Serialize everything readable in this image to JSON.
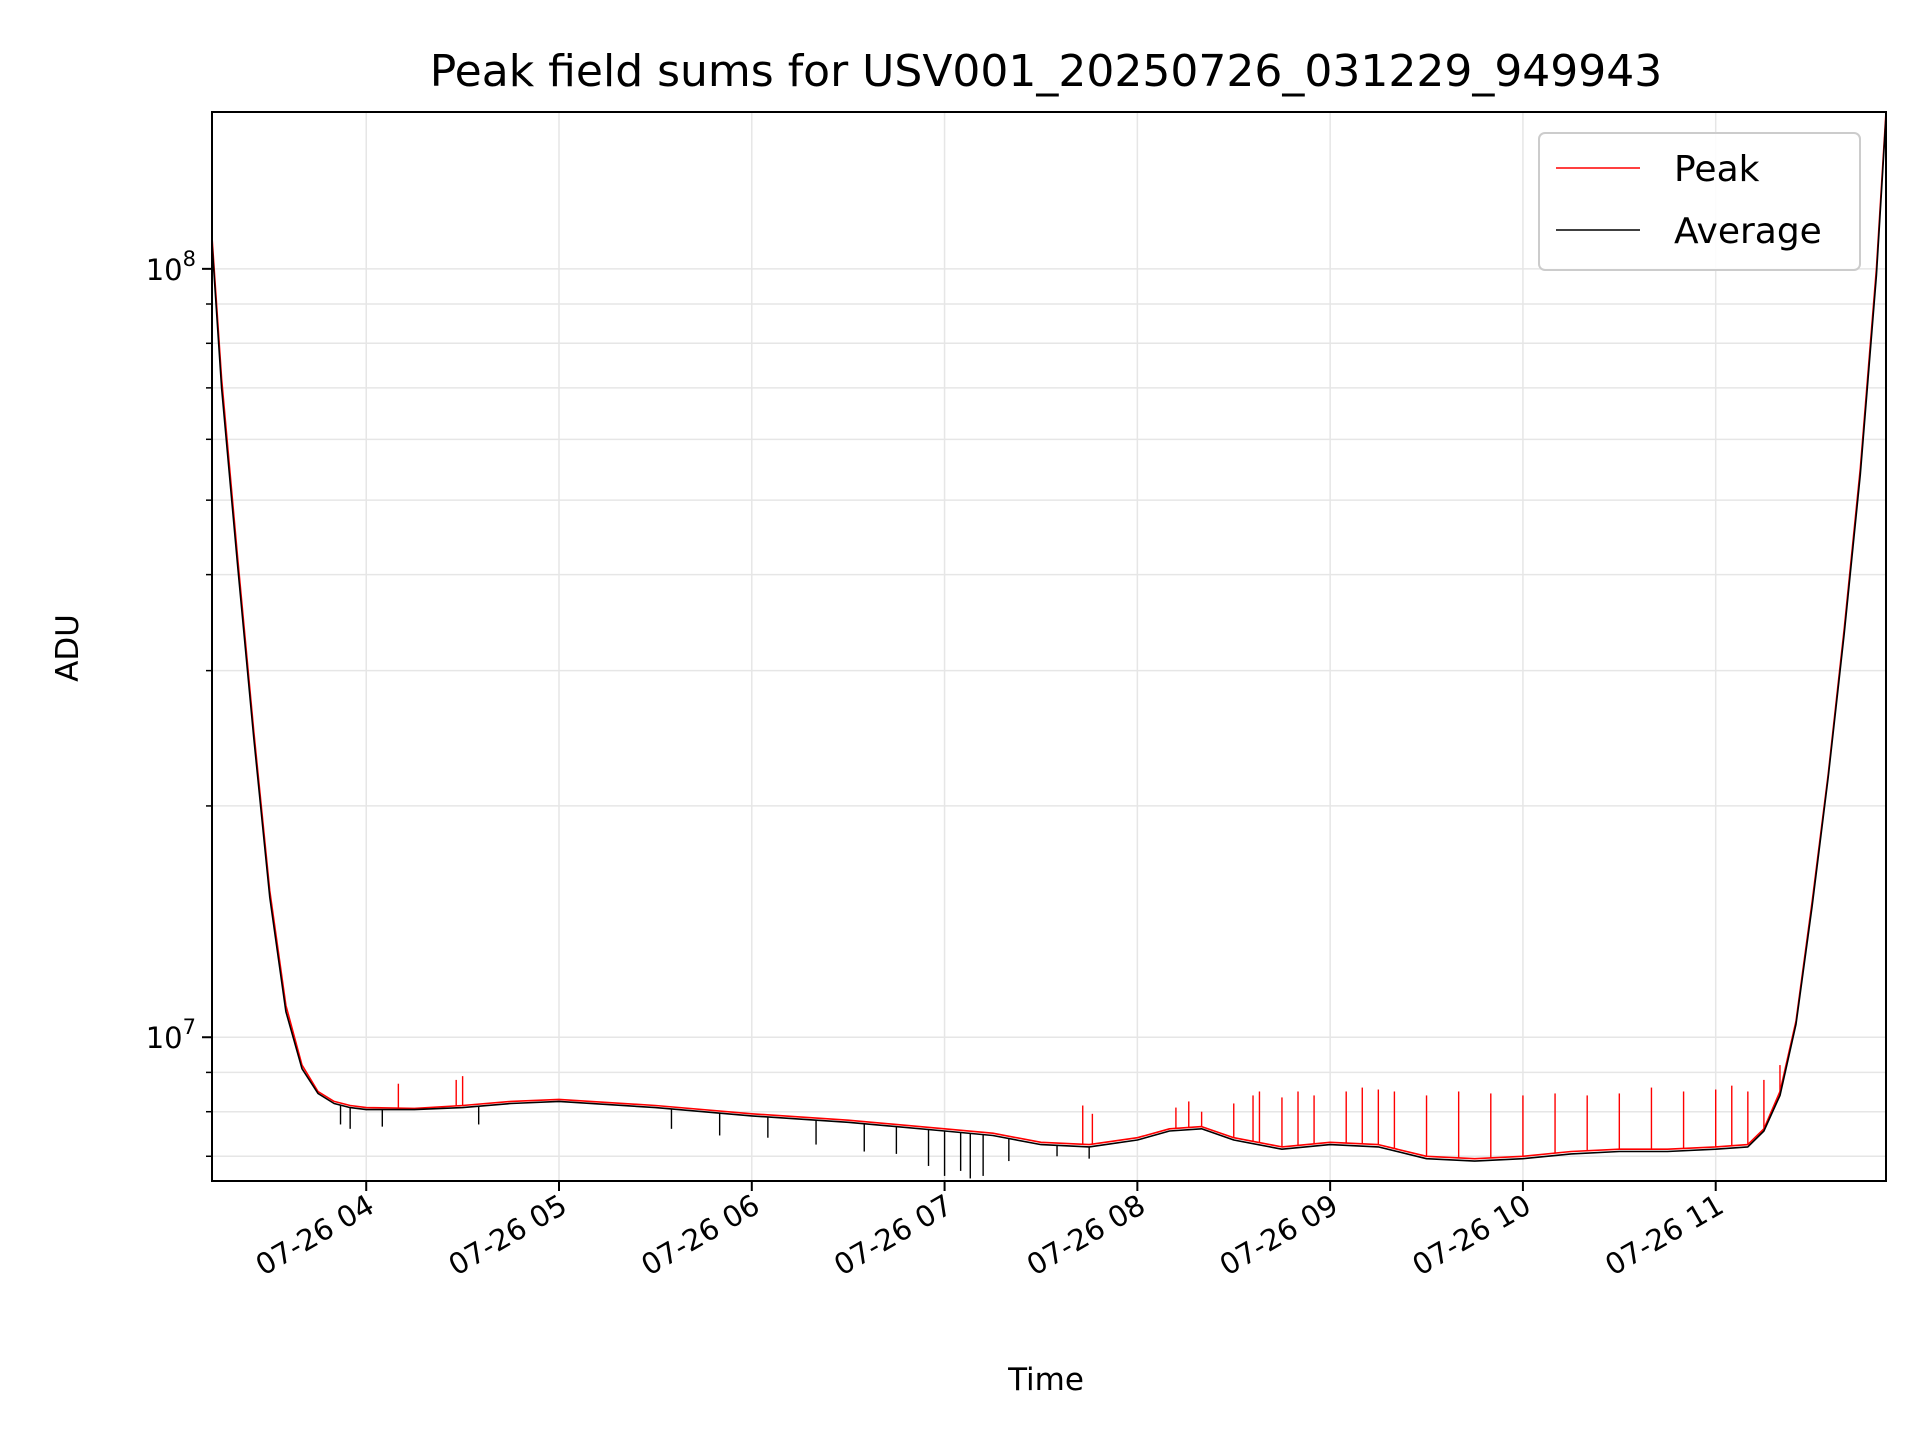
{
  "chart_data": {
    "type": "line",
    "title": "Peak field sums for USV001_20250726_031229_949943",
    "xlabel": "Time",
    "ylabel": "ADU",
    "yscale": "log",
    "ylim": [
      6500000,
      160000000
    ],
    "xlim": [
      "07-26 03:12",
      "07-26 11:53"
    ],
    "x_ticks": [
      "07-26 04",
      "07-26 05",
      "07-26 06",
      "07-26 07",
      "07-26 08",
      "07-26 09",
      "07-26 10",
      "07-26 11"
    ],
    "y_major_ticks": [
      {
        "value": 10000000,
        "base": "10",
        "exp": "7"
      },
      {
        "value": 100000000,
        "base": "10",
        "exp": "8"
      }
    ],
    "grid": true,
    "legend_position": "top-right",
    "series": [
      {
        "name": "Peak",
        "color": "#ff0000",
        "x": [
          "03:12",
          "03:15",
          "03:20",
          "03:25",
          "03:30",
          "03:35",
          "03:40",
          "03:45",
          "03:50",
          "03:55",
          "04:00",
          "04:15",
          "04:30",
          "04:45",
          "05:00",
          "05:30",
          "06:00",
          "06:30",
          "07:00",
          "07:15",
          "07:30",
          "07:45",
          "08:00",
          "08:10",
          "08:20",
          "08:30",
          "08:45",
          "09:00",
          "09:15",
          "09:30",
          "09:45",
          "10:00",
          "10:15",
          "10:30",
          "10:45",
          "11:00",
          "11:10",
          "11:15",
          "11:20",
          "11:25",
          "11:30",
          "11:35",
          "11:40",
          "11:45",
          "11:50",
          "11:53"
        ],
        "values": [
          110000000,
          72000000,
          42000000,
          25000000,
          15500000,
          11000000,
          9200000,
          8500000,
          8250000,
          8150000,
          8100000,
          8080000,
          8150000,
          8250000,
          8300000,
          8150000,
          7950000,
          7800000,
          7600000,
          7500000,
          7300000,
          7250000,
          7400000,
          7600000,
          7650000,
          7400000,
          7200000,
          7300000,
          7250000,
          7000000,
          6950000,
          7000000,
          7100000,
          7150000,
          7150000,
          7200000,
          7250000,
          7600000,
          8500000,
          10500000,
          15000000,
          22000000,
          34000000,
          55000000,
          100000000,
          160000000
        ],
        "spikes": [
          {
            "x": "04:10",
            "value": 8700000
          },
          {
            "x": "04:28",
            "value": 8800000
          },
          {
            "x": "04:30",
            "value": 8900000
          },
          {
            "x": "07:43",
            "value": 8150000
          },
          {
            "x": "07:46",
            "value": 7950000
          },
          {
            "x": "08:12",
            "value": 8100000
          },
          {
            "x": "08:16",
            "value": 8250000
          },
          {
            "x": "08:20",
            "value": 8000000
          },
          {
            "x": "08:30",
            "value": 8200000
          },
          {
            "x": "08:36",
            "value": 8400000
          },
          {
            "x": "08:38",
            "value": 8500000
          },
          {
            "x": "08:45",
            "value": 8350000
          },
          {
            "x": "08:50",
            "value": 8500000
          },
          {
            "x": "08:55",
            "value": 8400000
          },
          {
            "x": "09:05",
            "value": 8500000
          },
          {
            "x": "09:10",
            "value": 8600000
          },
          {
            "x": "09:15",
            "value": 8550000
          },
          {
            "x": "09:20",
            "value": 8500000
          },
          {
            "x": "09:30",
            "value": 8400000
          },
          {
            "x": "09:40",
            "value": 8500000
          },
          {
            "x": "09:50",
            "value": 8450000
          },
          {
            "x": "10:00",
            "value": 8400000
          },
          {
            "x": "10:10",
            "value": 8450000
          },
          {
            "x": "10:20",
            "value": 8400000
          },
          {
            "x": "10:30",
            "value": 8450000
          },
          {
            "x": "10:40",
            "value": 8600000
          },
          {
            "x": "10:50",
            "value": 8500000
          },
          {
            "x": "11:00",
            "value": 8550000
          },
          {
            "x": "11:05",
            "value": 8650000
          },
          {
            "x": "11:10",
            "value": 8500000
          },
          {
            "x": "11:15",
            "value": 8800000
          },
          {
            "x": "11:20",
            "value": 9200000
          }
        ]
      },
      {
        "name": "Average",
        "color": "#000000",
        "x": [
          "03:12",
          "03:15",
          "03:20",
          "03:25",
          "03:30",
          "03:35",
          "03:40",
          "03:45",
          "03:50",
          "03:55",
          "04:00",
          "04:15",
          "04:30",
          "04:45",
          "05:00",
          "05:30",
          "06:00",
          "06:30",
          "07:00",
          "07:15",
          "07:30",
          "07:45",
          "08:00",
          "08:10",
          "08:20",
          "08:30",
          "08:45",
          "09:00",
          "09:15",
          "09:30",
          "09:45",
          "10:00",
          "10:15",
          "10:30",
          "10:45",
          "11:00",
          "11:10",
          "11:15",
          "11:20",
          "11:25",
          "11:30",
          "11:35",
          "11:40",
          "11:45",
          "11:50",
          "11:53"
        ],
        "values": [
          108000000,
          70000000,
          41000000,
          24500000,
          15200000,
          10800000,
          9100000,
          8450000,
          8200000,
          8100000,
          8050000,
          8050000,
          8100000,
          8200000,
          8250000,
          8100000,
          7900000,
          7750000,
          7550000,
          7450000,
          7250000,
          7200000,
          7350000,
          7550000,
          7600000,
          7350000,
          7150000,
          7250000,
          7200000,
          6950000,
          6900000,
          6950000,
          7050000,
          7100000,
          7100000,
          7150000,
          7200000,
          7550000,
          8400000,
          10400000,
          14800000,
          21800000,
          33500000,
          54000000,
          98000000,
          158000000
        ],
        "dips": [
          {
            "x": "03:52",
            "value": 7700000
          },
          {
            "x": "03:55",
            "value": 7600000
          },
          {
            "x": "04:05",
            "value": 7650000
          },
          {
            "x": "04:35",
            "value": 7700000
          },
          {
            "x": "05:35",
            "value": 7600000
          },
          {
            "x": "05:50",
            "value": 7450000
          },
          {
            "x": "06:05",
            "value": 7400000
          },
          {
            "x": "06:20",
            "value": 7250000
          },
          {
            "x": "06:35",
            "value": 7100000
          },
          {
            "x": "06:45",
            "value": 7050000
          },
          {
            "x": "06:55",
            "value": 6800000
          },
          {
            "x": "07:00",
            "value": 6600000
          },
          {
            "x": "07:05",
            "value": 6700000
          },
          {
            "x": "07:08",
            "value": 6550000
          },
          {
            "x": "07:12",
            "value": 6600000
          },
          {
            "x": "07:20",
            "value": 6900000
          },
          {
            "x": "07:35",
            "value": 7000000
          },
          {
            "x": "07:45",
            "value": 6950000
          }
        ]
      }
    ]
  }
}
